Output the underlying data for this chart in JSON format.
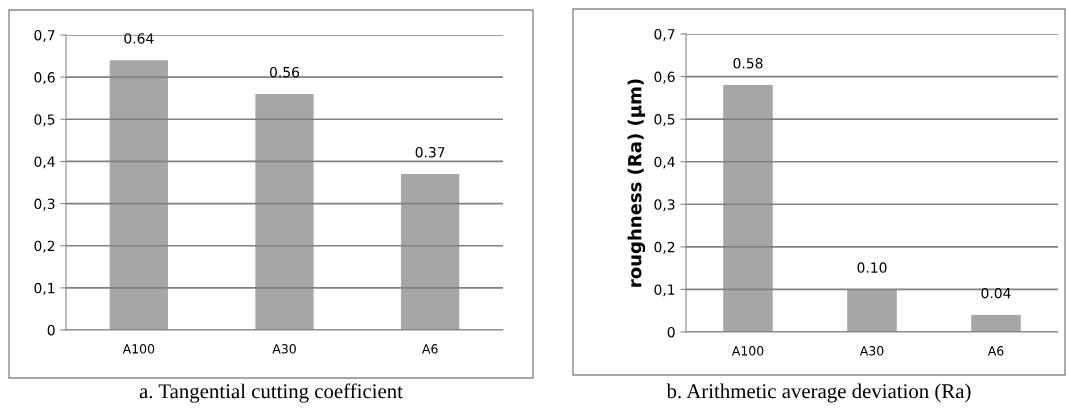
{
  "chart_data": [
    {
      "type": "bar",
      "title": "a. Tangential cutting coefficient",
      "categories": [
        "A100",
        "A30",
        "A6"
      ],
      "values": [
        0.64,
        0.56,
        0.37
      ],
      "color": "#a6a6a6",
      "value_labels": [
        "0.64",
        "0.56",
        "0.37"
      ],
      "ylim": [
        0,
        0.7
      ],
      "yticks": [
        {
          "value": 0,
          "label": "0"
        },
        {
          "value": 0.1,
          "label": "0,1"
        },
        {
          "value": 0.2,
          "label": "0,2"
        },
        {
          "value": 0.3,
          "label": "0,3"
        },
        {
          "value": 0.4,
          "label": "0,4"
        },
        {
          "value": 0.5,
          "label": "0,5"
        },
        {
          "value": 0.6,
          "label": "0,6"
        },
        {
          "value": 0.7,
          "label": "0,7"
        }
      ],
      "grid": "y"
    },
    {
      "type": "bar",
      "title": "b. Arithmetic average deviation (Ra)",
      "ylabel": "roughness (Ra) (μm)",
      "categories": [
        "A100",
        "A30",
        "A6"
      ],
      "values": [
        0.58,
        0.1,
        0.04
      ],
      "color": "#a6a6a6",
      "value_labels": [
        "0.58",
        "0.10",
        "0.04"
      ],
      "ylim": [
        0,
        0.7
      ],
      "yticks": [
        {
          "value": 0,
          "label": "0"
        },
        {
          "value": 0.1,
          "label": "0,1"
        },
        {
          "value": 0.2,
          "label": "0,2"
        },
        {
          "value": 0.3,
          "label": "0,3"
        },
        {
          "value": 0.4,
          "label": "0,4"
        },
        {
          "value": 0.5,
          "label": "0,5"
        },
        {
          "value": 0.6,
          "label": "0,6"
        },
        {
          "value": 0.7,
          "label": "0,7"
        }
      ],
      "grid": "y"
    }
  ]
}
